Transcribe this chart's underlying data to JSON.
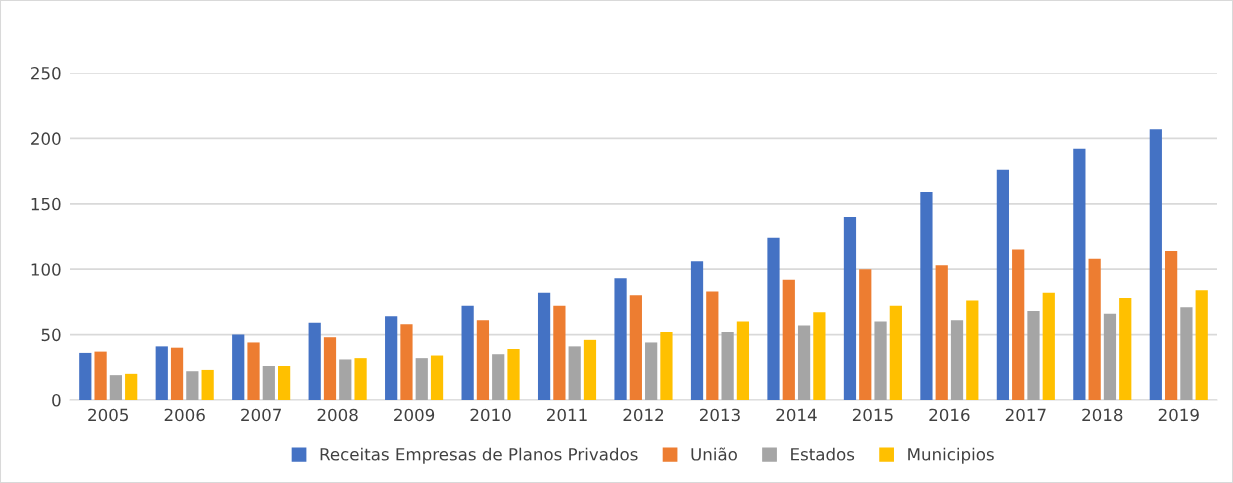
{
  "chart_data": {
    "type": "bar",
    "categories": [
      "2005",
      "2006",
      "2007",
      "2008",
      "2009",
      "2010",
      "2011",
      "2012",
      "2013",
      "2014",
      "2015",
      "2016",
      "2017",
      "2018",
      "2019"
    ],
    "series": [
      {
        "name": "Receitas Empresas de Planos Privados",
        "color": "#4472c4",
        "values": [
          36,
          41,
          50,
          59,
          64,
          72,
          82,
          93,
          106,
          124,
          140,
          159,
          176,
          192,
          207
        ]
      },
      {
        "name": "União",
        "color": "#ed7d31",
        "values": [
          37,
          40,
          44,
          48,
          58,
          61,
          72,
          80,
          83,
          92,
          100,
          103,
          115,
          108,
          114
        ]
      },
      {
        "name": "Estados",
        "color": "#a5a5a5",
        "values": [
          19,
          22,
          26,
          31,
          32,
          35,
          41,
          44,
          52,
          57,
          60,
          61,
          68,
          66,
          71
        ]
      },
      {
        "name": "Municipios",
        "color": "#ffc000",
        "values": [
          20,
          23,
          26,
          32,
          34,
          39,
          46,
          52,
          60,
          67,
          72,
          76,
          82,
          78,
          84
        ]
      }
    ],
    "ylim": [
      0,
      250
    ],
    "yticks": [
      0,
      50,
      100,
      150,
      200,
      250
    ],
    "grid": "y",
    "legend": "bottom"
  }
}
